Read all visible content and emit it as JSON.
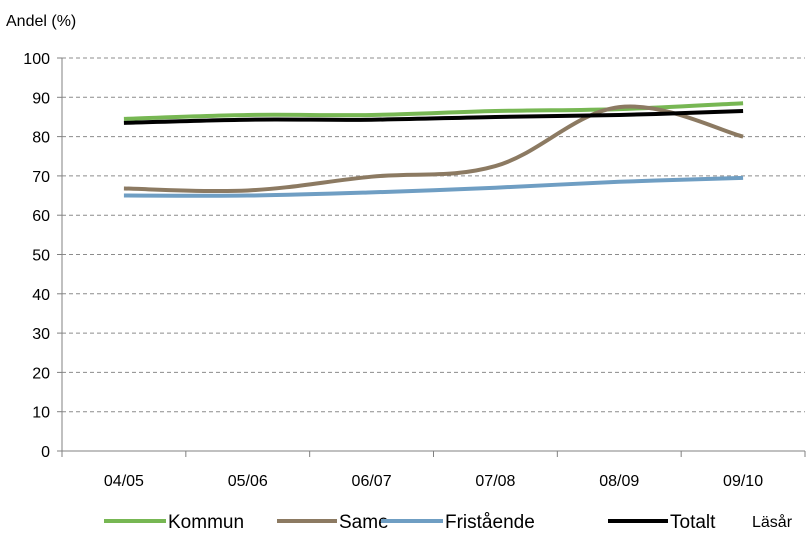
{
  "chart_data": {
    "type": "line",
    "ylabel": "Andel (%)",
    "xlabel": "Läsår",
    "categories": [
      "04/05",
      "05/06",
      "06/07",
      "07/08",
      "08/09",
      "09/10"
    ],
    "ylim": [
      0,
      100
    ],
    "yticks": [
      0,
      10,
      20,
      30,
      40,
      50,
      60,
      70,
      80,
      90,
      100
    ],
    "grid": true,
    "legend_position": "bottom",
    "series": [
      {
        "name": "Kommun",
        "color": "#77b753",
        "values": [
          84.5,
          85.5,
          85.5,
          86.5,
          87,
          88.5
        ]
      },
      {
        "name": "Same",
        "color": "#8c7a62",
        "values": [
          66.8,
          66.3,
          69.8,
          72.5,
          87.5,
          80
        ]
      },
      {
        "name": "Fristående",
        "color": "#6f9ec3",
        "values": [
          65,
          65,
          65.8,
          67,
          68.5,
          69.5
        ]
      },
      {
        "name": "Totalt",
        "color": "#000000",
        "values": [
          83.5,
          84.3,
          84.3,
          85,
          85.5,
          86.5
        ]
      }
    ]
  }
}
